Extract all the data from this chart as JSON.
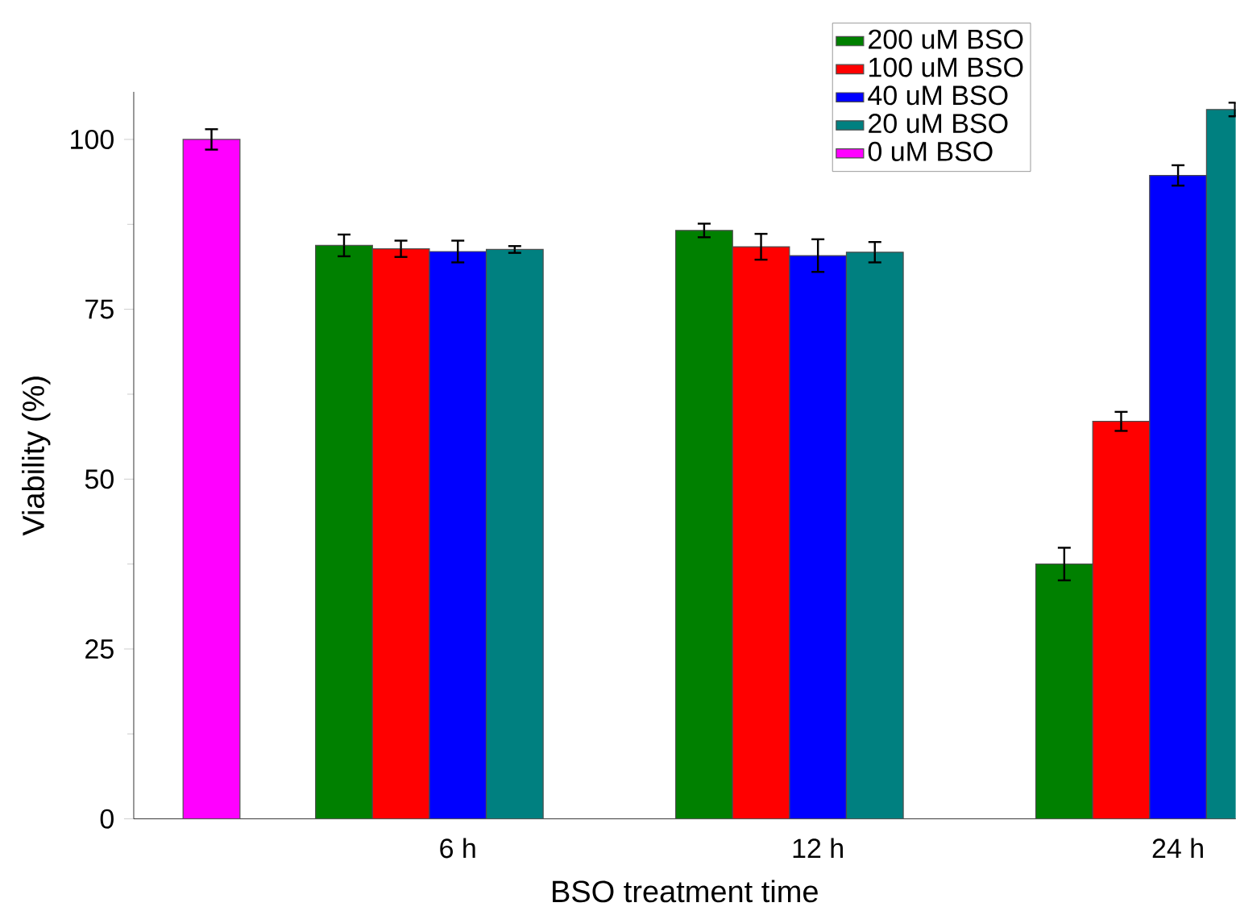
{
  "chart_data": {
    "type": "bar",
    "xlabel": "BSO treatment time",
    "ylabel": "Viability (%)",
    "categories": [
      null,
      "6 h",
      "12 h",
      "24 h"
    ],
    "series": [
      {
        "name": "200 uM BSO",
        "color": "#008000",
        "values": [
          null,
          84.4,
          86.6,
          37.5
        ],
        "errors": [
          null,
          1.6,
          1.0,
          2.4
        ]
      },
      {
        "name": "100 uM BSO",
        "color": "#ff0000",
        "values": [
          null,
          83.9,
          84.2,
          58.5
        ],
        "errors": [
          null,
          1.2,
          1.9,
          1.4
        ]
      },
      {
        "name": "40 uM BSO",
        "color": "#0000ff",
        "values": [
          null,
          83.5,
          82.9,
          94.7
        ],
        "errors": [
          null,
          1.6,
          2.4,
          1.5
        ]
      },
      {
        "name": "20 uM BSO",
        "color": "#008080",
        "values": [
          null,
          83.8,
          83.4,
          104.4
        ],
        "errors": [
          null,
          0.5,
          1.5,
          1.0
        ]
      },
      {
        "name": "0 uM BSO",
        "color": "#ff00ff",
        "values": [
          100,
          null,
          null,
          null
        ],
        "errors": [
          1.5,
          null,
          null,
          null
        ]
      }
    ],
    "ylim": [
      0,
      107
    ],
    "yticks": [
      0,
      25,
      50,
      75,
      100
    ],
    "legend": "top right"
  }
}
